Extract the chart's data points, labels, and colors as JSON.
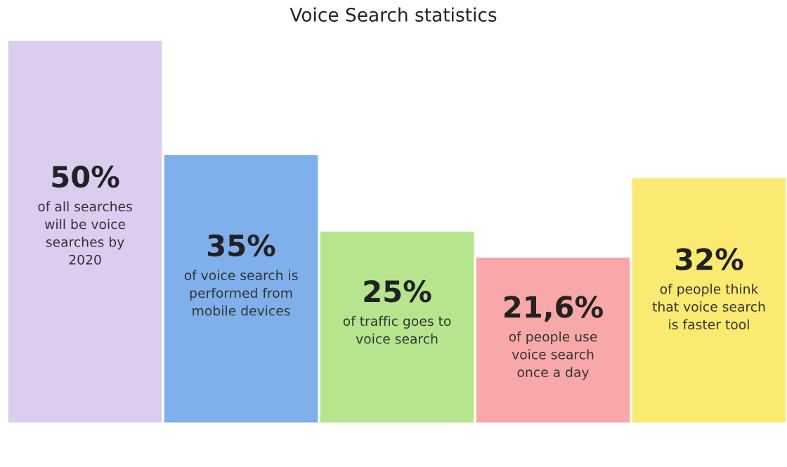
{
  "chart_data": {
    "type": "bar",
    "title": "Voice Search statistics",
    "categories": [
      "of all searches\nwill be voice\nsearches by\n2020",
      "of voice search is\nperformed from\nmobile devices",
      "of traffic goes to\nvoice search",
      "of people use\nvoice search\nonce a day",
      "of people think\nthat voice search\nis faster tool"
    ],
    "values": [
      50,
      35,
      25,
      21.6,
      32
    ],
    "value_labels": [
      "50%",
      "35%",
      "25%",
      "21,6%",
      "32%"
    ],
    "colors": [
      "#dacdf0",
      "#80b0eb",
      "#b6e58e",
      "#f8a8a8",
      "#fbea72"
    ]
  }
}
